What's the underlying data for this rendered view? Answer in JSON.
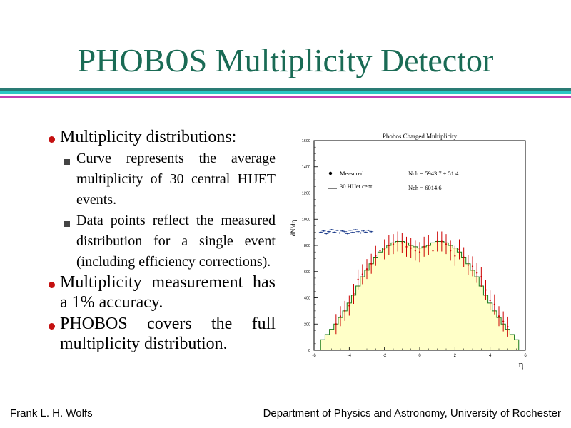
{
  "slide": {
    "title": "PHOBOS Multiplicity Detector",
    "bullets": [
      {
        "text": "Multiplicity distributions:",
        "sub": [
          "Curve represents the average multiplicity of 30 central HIJET events.",
          "Data points reflect the measured distribution for a single event (including efficiency corrections)."
        ]
      },
      {
        "text": "Multiplicity measurement has a 1% accuracy.",
        "sub": []
      },
      {
        "text": "PHOBOS covers the full multiplicity distribution.",
        "sub": []
      }
    ],
    "footer_left": "Frank L. H. Wolfs",
    "footer_right": "Department of Physics and Astronomy, University of Rochester"
  },
  "colors": {
    "title": "#1a6b55",
    "bullet": "#c41010",
    "histogram_fill": "#ffffc8",
    "histogram_line": "#1a7a1a",
    "points": "#cc0000"
  },
  "chart_data": {
    "type": "bar",
    "title": "Phobos Charged Multiplicity",
    "xlabel": "η",
    "ylabel": "dN/dη",
    "xlim": [
      -6,
      6
    ],
    "ylim": [
      0,
      1600
    ],
    "xticks": [
      "-6",
      "-4",
      "-2",
      "0",
      "2",
      "4",
      "6"
    ],
    "yticks": [
      "0",
      "200",
      "400",
      "600",
      "800",
      "1000",
      "1200",
      "1400",
      "1600"
    ],
    "legend": [
      {
        "label": "Measured",
        "style": "marker"
      },
      {
        "label": "30 HIJet cent",
        "style": "line"
      }
    ],
    "annotations": [
      "Nch = 5943.7 ± 51.4",
      "Nch = 6014.6"
    ],
    "series": [
      {
        "name": "30 HIJet cent",
        "style": "histogram",
        "x": [
          -5.5,
          -5.25,
          -5.0,
          -4.75,
          -4.5,
          -4.25,
          -4.0,
          -3.75,
          -3.5,
          -3.25,
          -3.0,
          -2.75,
          -2.5,
          -2.25,
          -2.0,
          -1.75,
          -1.5,
          -1.25,
          -1.0,
          -0.75,
          -0.5,
          -0.25,
          0.0,
          0.25,
          0.5,
          0.75,
          1.0,
          1.25,
          1.5,
          1.75,
          2.0,
          2.25,
          2.5,
          2.75,
          3.0,
          3.25,
          3.5,
          3.75,
          4.0,
          4.25,
          4.5,
          4.75,
          5.0,
          5.25,
          5.5
        ],
        "y": [
          80,
          120,
          160,
          200,
          250,
          300,
          360,
          420,
          490,
          560,
          610,
          660,
          710,
          750,
          780,
          800,
          820,
          830,
          830,
          820,
          800,
          790,
          780,
          790,
          800,
          820,
          830,
          830,
          820,
          800,
          780,
          750,
          710,
          660,
          610,
          560,
          490,
          420,
          360,
          300,
          250,
          200,
          160,
          120,
          80
        ]
      },
      {
        "name": "Measured",
        "style": "points",
        "x": [
          -4.75,
          -4.5,
          -4.25,
          -4.0,
          -3.75,
          -3.5,
          -3.25,
          -3.0,
          -2.75,
          -2.5,
          -2.25,
          -2.0,
          -1.75,
          -1.5,
          -1.25,
          -1.0,
          -0.75,
          -0.5,
          -0.25,
          0.0,
          0.25,
          0.5,
          0.75,
          1.0,
          1.25,
          1.5,
          1.75,
          2.0,
          2.25,
          2.5,
          2.75,
          3.0,
          3.25,
          3.5,
          3.75,
          4.0,
          4.25,
          4.5,
          4.75,
          5.0
        ],
        "y": [
          200,
          260,
          300,
          340,
          430,
          540,
          580,
          620,
          660,
          720,
          760,
          770,
          800,
          810,
          830,
          820,
          790,
          780,
          760,
          750,
          790,
          800,
          760,
          830,
          830,
          810,
          760,
          720,
          770,
          710,
          650,
          640,
          590,
          560,
          460,
          380,
          350,
          260,
          220,
          180
        ]
      }
    ],
    "off_acceptance_points": {
      "x": [
        -5.6,
        -5.45,
        -5.3,
        -5.15,
        -5.0,
        -4.85,
        -4.7,
        -4.55,
        -4.4,
        -4.25,
        -4.1,
        -3.95,
        -3.8,
        -3.65,
        -3.5,
        -3.35,
        -3.2,
        -3.05,
        -2.9,
        -2.75
      ],
      "y": [
        900,
        910,
        890,
        905,
        920,
        900,
        915,
        895,
        910,
        905,
        890,
        915,
        900,
        920,
        905,
        895,
        910,
        900,
        915,
        905
      ]
    }
  }
}
